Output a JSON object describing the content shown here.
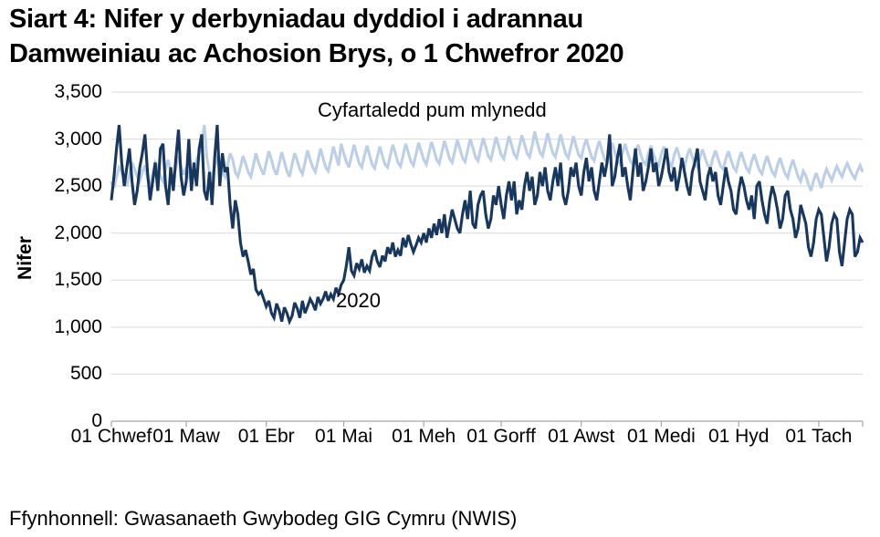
{
  "page": {
    "title": "Siart 4: Nifer y derbyniadau dyddiol i adrannau Damweiniau ac Achosion Brys, o 1 Chwefror 2020",
    "source": "Ffynhonnell: Gwasanaeth Gwybodeg GIG Cymru (NWIS)"
  },
  "colors": {
    "series_2020": "#17375E",
    "series_five_year_avg": "#BCCFE8",
    "gridline": "#D9D9D9",
    "axis_line": "#A6A6A6",
    "text": "#000000"
  },
  "chart_data": {
    "type": "line",
    "title": "Siart 4: Nifer y derbyniadau dyddiol i adrannau Damweiniau ac Achosion Brys, o 1 Chwefror 2020",
    "xlabel": "",
    "ylabel": "Nifer",
    "ylim": [
      0,
      3500
    ],
    "y_tick_step": 500,
    "y_ticks": [
      0,
      500,
      1000,
      1500,
      2000,
      2500,
      3000,
      3500
    ],
    "grid": "horizontal",
    "legend_position": "in-plot annotations",
    "x_start": "01 Chwefror 2020",
    "x_days_total": 292,
    "x_tick_labels": [
      "01 Chwef",
      "01 Maw",
      "01 Ebr",
      "01 Mai",
      "01 Meh",
      "01 Gorff",
      "01 Awst",
      "01 Medi",
      "01 Hyd",
      "01 Tach"
    ],
    "x_tick_days": [
      0,
      29,
      60,
      90,
      121,
      151,
      182,
      213,
      243,
      274
    ],
    "annotations": [
      {
        "text": "Cyfartaledd pum mlynedd",
        "series": "five_year_average"
      },
      {
        "text": "2020",
        "series": "2020"
      }
    ],
    "series": [
      {
        "name": "Cyfartaledd pum mlynedd",
        "color": "#BCCFE8",
        "values": [
          2550,
          2480,
          2600,
          2700,
          2650,
          2580,
          2500,
          2620,
          2750,
          2680,
          2600,
          2550,
          2650,
          2720,
          2580,
          2500,
          2630,
          2750,
          2700,
          2600,
          2550,
          2680,
          2780,
          2650,
          2580,
          2700,
          2820,
          2700,
          2620,
          2700,
          2600,
          2550,
          2680,
          2780,
          2850,
          2950,
          3150,
          2800,
          2650,
          2600,
          2700,
          2800,
          2750,
          2650,
          2600,
          2720,
          2850,
          2780,
          2650,
          2600,
          2700,
          2820,
          2740,
          2650,
          2600,
          2720,
          2850,
          2750,
          2680,
          2620,
          2750,
          2870,
          2780,
          2680,
          2620,
          2740,
          2860,
          2760,
          2660,
          2600,
          2730,
          2850,
          2770,
          2680,
          2630,
          2750,
          2880,
          2780,
          2700,
          2650,
          2770,
          2900,
          2800,
          2700,
          2660,
          2780,
          2920,
          2820,
          2720,
          2950,
          2850,
          2760,
          2700,
          2820,
          2940,
          2840,
          2740,
          2700,
          2820,
          2930,
          2830,
          2730,
          2690,
          2810,
          2920,
          2820,
          2730,
          2700,
          2820,
          2940,
          2850,
          2750,
          2710,
          2830,
          2950,
          2860,
          2760,
          2720,
          2840,
          2960,
          2870,
          2780,
          2730,
          2850,
          2970,
          2880,
          2780,
          2740,
          2860,
          2980,
          2890,
          2790,
          2750,
          2870,
          2990,
          2900,
          2800,
          2760,
          2880,
          3000,
          2910,
          2810,
          2770,
          2890,
          3010,
          2920,
          2820,
          2780,
          2900,
          3020,
          2930,
          2830,
          2790,
          2910,
          3030,
          2940,
          2840,
          2800,
          2920,
          3040,
          2950,
          2850,
          2810,
          2930,
          3080,
          2960,
          2860,
          2820,
          2940,
          3060,
          2950,
          2850,
          2810,
          2930,
          3050,
          2940,
          2840,
          2800,
          2920,
          3030,
          2930,
          2830,
          2800,
          2920,
          3000,
          2900,
          2810,
          2770,
          2890,
          2980,
          2880,
          2790,
          2750,
          2870,
          2960,
          2860,
          2780,
          2740,
          2860,
          2950,
          2850,
          2770,
          2730,
          2850,
          2940,
          2840,
          2760,
          2730,
          2850,
          2930,
          2840,
          2760,
          2720,
          2840,
          2920,
          2830,
          2750,
          2710,
          2830,
          2910,
          2820,
          2740,
          2700,
          2820,
          2900,
          2810,
          2730,
          2700,
          2810,
          2890,
          2800,
          2720,
          2690,
          2800,
          2880,
          2790,
          2710,
          2680,
          2790,
          2870,
          2780,
          2700,
          2660,
          2780,
          2860,
          2770,
          2690,
          2650,
          2760,
          2840,
          2750,
          2670,
          2630,
          2740,
          2820,
          2730,
          2650,
          2610,
          2720,
          2800,
          2710,
          2630,
          2590,
          2700,
          2780,
          2690,
          2600,
          2550,
          2660,
          2610,
          2520,
          2450,
          2560,
          2640,
          2560,
          2480,
          2600,
          2680,
          2620,
          2560,
          2640,
          2710,
          2650,
          2600,
          2680,
          2740,
          2680,
          2620,
          2580,
          2660,
          2720,
          2650
        ]
      },
      {
        "name": "2020",
        "color": "#17375E",
        "values": [
          2350,
          2600,
          2900,
          3150,
          2750,
          2500,
          2700,
          2900,
          2550,
          2300,
          2450,
          2700,
          2850,
          3050,
          2650,
          2350,
          2550,
          2750,
          2450,
          2900,
          2950,
          2500,
          2300,
          2700,
          2450,
          2800,
          3100,
          2600,
          2400,
          2550,
          3000,
          2450,
          2750,
          2500,
          2900,
          3050,
          2450,
          2350,
          2650,
          2300,
          2800,
          3150,
          2500,
          2850,
          2650,
          2700,
          2300,
          2050,
          2350,
          2200,
          1900,
          1750,
          1820,
          1700,
          1560,
          1620,
          1400,
          1350,
          1380,
          1300,
          1220,
          1280,
          1150,
          1100,
          1250,
          1180,
          1060,
          1210,
          1150,
          1060,
          1120,
          1260,
          1200,
          1100,
          1280,
          1150,
          1220,
          1300,
          1250,
          1180,
          1320,
          1250,
          1300,
          1380,
          1280,
          1350,
          1300,
          1420,
          1350,
          1450,
          1500,
          1650,
          1850,
          1600,
          1550,
          1680,
          1620,
          1720,
          1580,
          1650,
          1600,
          1750,
          1820,
          1700,
          1640,
          1760,
          1700,
          1850,
          1780,
          1900,
          1750,
          1820,
          1760,
          1950,
          1850,
          1980,
          1880,
          1800,
          1870,
          1950,
          1900,
          2000,
          1900,
          2050,
          1950,
          2100,
          1980,
          2150,
          2000,
          2200,
          1950,
          2100,
          2250,
          2150,
          2050,
          2000,
          2200,
          2350,
          2150,
          2450,
          2100,
          2050,
          2300,
          2400,
          2450,
          2200,
          2050,
          2150,
          2400,
          2300,
          2500,
          2300,
          2150,
          2400,
          2550,
          2350,
          2550,
          2200,
          2350,
          2250,
          2500,
          2650,
          2450,
          2600,
          2300,
          2400,
          2650,
          2500,
          2700,
          2450,
          2350,
          2550,
          2700,
          2500,
          2750,
          2400,
          2300,
          2450,
          2700,
          2600,
          2750,
          2500,
          2400,
          2650,
          2800,
          2550,
          2700,
          2450,
          2350,
          2550,
          2750,
          2600,
          2750,
          3050,
          2500,
          2600,
          2800,
          2950,
          2600,
          2700,
          2500,
          2350,
          2650,
          2900,
          2600,
          2750,
          2450,
          2550,
          2700,
          2900,
          2650,
          2750,
          2500,
          2600,
          2750,
          2900,
          2650,
          2550,
          2700,
          2450,
          2600,
          2800,
          2650,
          2500,
          2400,
          2650,
          2750,
          2900,
          2550,
          2450,
          2350,
          2600,
          2700,
          2550,
          2650,
          2400,
          2300,
          2500,
          2700,
          2550,
          2450,
          2250,
          2200,
          2450,
          2600,
          2500,
          2350,
          2250,
          2400,
          2150,
          2500,
          2550,
          2350,
          2200,
          2100,
          2350,
          2500,
          2400,
          2250,
          2050,
          2150,
          2400,
          2450,
          2250,
          2150,
          1950,
          2050,
          2300,
          2200,
          2100,
          1850,
          1750,
          1900,
          2150,
          2250,
          2200,
          1950,
          1700,
          1850,
          2100,
          2200,
          2150,
          1800,
          1650,
          1900,
          2150,
          2250,
          2200,
          1750,
          1800,
          1950,
          1900
        ]
      }
    ]
  }
}
